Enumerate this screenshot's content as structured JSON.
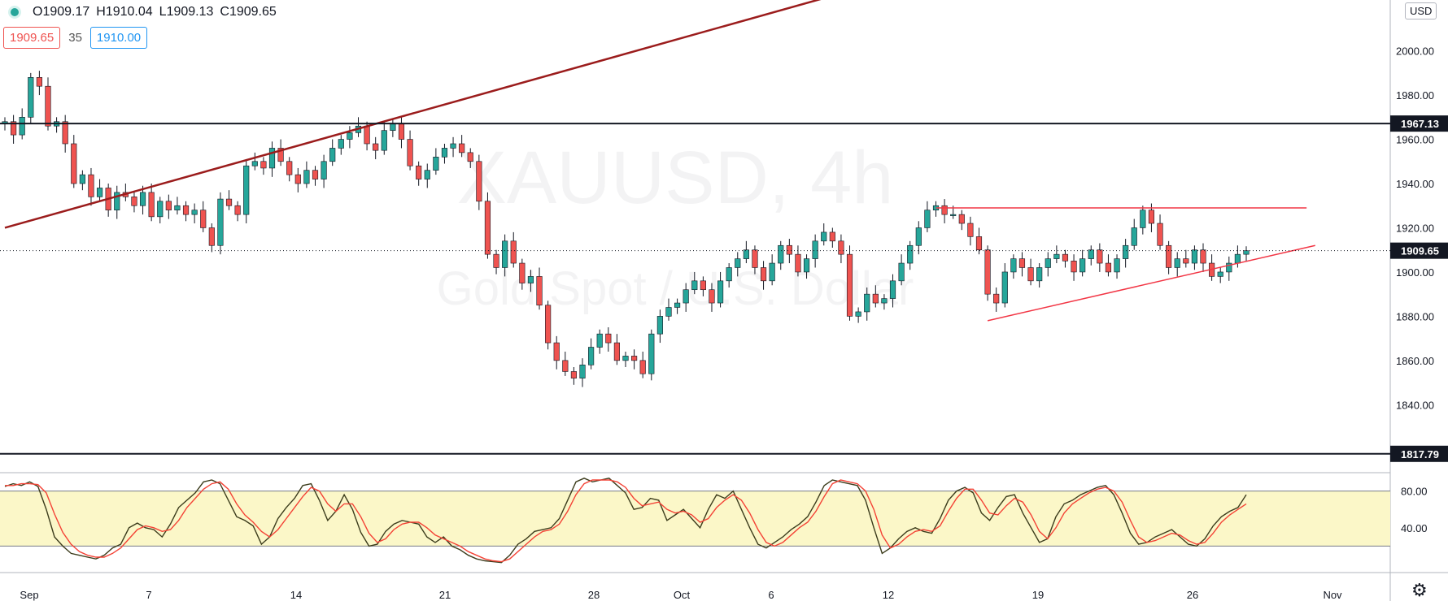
{
  "header": {
    "open": "O1909.17",
    "high": "H1910.04",
    "low": "L1909.13",
    "close": "C1909.65",
    "sell_price": "1909.65",
    "spread": "35",
    "buy_price": "1910.00",
    "currency": "USD",
    "status_color": "#26a69a"
  },
  "watermark": {
    "symbol_line": "XAUUSD, 4h",
    "name_line": "Gold Spot / U.S. Dollar"
  },
  "colors": {
    "up": "#26a69a",
    "down": "#ef5350",
    "trendline": "#9b1c1c",
    "triangle": "#f23645",
    "stoch_k": "#3c3c1c",
    "stoch_d": "#f44336",
    "stoch_band": "#fbf7c8"
  },
  "icons": {
    "settings": "gear-icon"
  },
  "chart_data": [
    {
      "type": "candlestick",
      "timeframe": "4h",
      "x_tick_labels": [
        "Sep",
        "7",
        "14",
        "21",
        "28",
        "Oct",
        "6",
        "12",
        "19",
        "26",
        "Nov"
      ],
      "y_tick_labels": [
        "2000.00",
        "1980.00",
        "1960.00",
        "1940.00",
        "1920.00",
        "1900.00",
        "1880.00",
        "1860.00",
        "1840.00"
      ],
      "ylim": [
        1810,
        2023
      ],
      "horizontal_levels": [
        {
          "label": "1967.13",
          "value": 1967.13
        },
        {
          "label": "1817.79",
          "value": 1817.79
        }
      ],
      "last_price": {
        "label": "1909.65",
        "value": 1909.65
      },
      "close_series": [
        1968,
        1962,
        1970,
        1988,
        1984,
        1966,
        1968,
        1958,
        1940,
        1944,
        1934,
        1938,
        1928,
        1936,
        1934,
        1930,
        1936,
        1925,
        1932,
        1928,
        1930,
        1926,
        1928,
        1920,
        1912,
        1933,
        1930,
        1926,
        1948,
        1950,
        1947,
        1956,
        1950,
        1944,
        1940,
        1946,
        1942,
        1950,
        1956,
        1960,
        1963,
        1966,
        1958,
        1955,
        1964,
        1967,
        1960,
        1948,
        1942,
        1946,
        1952,
        1956,
        1958,
        1954,
        1950,
        1932,
        1908,
        1902,
        1914,
        1904,
        1895,
        1898,
        1885,
        1868,
        1860,
        1855,
        1852,
        1858,
        1866,
        1872,
        1868,
        1860,
        1862,
        1860,
        1854,
        1872,
        1880,
        1884,
        1886,
        1892,
        1896,
        1892,
        1886,
        1896,
        1902,
        1906,
        1910,
        1902,
        1896,
        1904,
        1912,
        1908,
        1900,
        1906,
        1914,
        1918,
        1914,
        1908,
        1880,
        1882,
        1890,
        1886,
        1888,
        1896,
        1904,
        1912,
        1920,
        1928,
        1930,
        1926,
        1926,
        1922,
        1916,
        1910,
        1890,
        1886,
        1900,
        1906,
        1902,
        1896,
        1902,
        1906,
        1908,
        1905,
        1900,
        1906,
        1910,
        1904,
        1900,
        1906,
        1912,
        1920,
        1928,
        1922,
        1912,
        1902,
        1906,
        1904,
        1910,
        1904,
        1898,
        1900,
        1904,
        1908,
        1909.65
      ],
      "annotations": [
        {
          "type": "trendline",
          "from": [
            0,
            1920
          ],
          "to": [
            97,
            2026
          ]
        },
        {
          "type": "triangle-top",
          "from": [
            108,
            1929
          ],
          "to": [
            151,
            1929
          ]
        },
        {
          "type": "triangle-bottom",
          "from": [
            114,
            1878
          ],
          "to": [
            152,
            1912
          ]
        }
      ]
    },
    {
      "type": "line",
      "title": "",
      "y_tick_labels": [
        "80.00",
        "40.00"
      ],
      "ylim": [
        0,
        100
      ],
      "overbought": 80,
      "oversold": 20,
      "series": [
        {
          "key": "k",
          "values": [
            85,
            88,
            86,
            90,
            85,
            60,
            30,
            20,
            12,
            10,
            8,
            6,
            10,
            18,
            22,
            40,
            45,
            40,
            38,
            30,
            44,
            62,
            70,
            78,
            90,
            92,
            88,
            70,
            52,
            48,
            42,
            22,
            30,
            50,
            62,
            72,
            86,
            88,
            70,
            48,
            58,
            76,
            60,
            35,
            20,
            22,
            36,
            44,
            48,
            46,
            44,
            30,
            24,
            30,
            20,
            16,
            10,
            6,
            4,
            3,
            2,
            10,
            22,
            28,
            36,
            38,
            40,
            50,
            70,
            90,
            94,
            90,
            92,
            94,
            86,
            78,
            60,
            62,
            72,
            70,
            48,
            54,
            60,
            50,
            40,
            60,
            76,
            72,
            80,
            60,
            40,
            22,
            18,
            24,
            30,
            38,
            44,
            52,
            68,
            86,
            92,
            90,
            88,
            86,
            70,
            40,
            12,
            18,
            28,
            36,
            40,
            36,
            34,
            50,
            70,
            80,
            84,
            78,
            56,
            48,
            62,
            74,
            76,
            56,
            40,
            24,
            28,
            52,
            66,
            70,
            76,
            80,
            84,
            86,
            76,
            56,
            34,
            22,
            24,
            30,
            34,
            38,
            30,
            22,
            20,
            28,
            42,
            52,
            58,
            62,
            76
          ]
        },
        {
          "key": "d",
          "values": [
            86,
            86,
            88,
            88,
            87,
            78,
            55,
            35,
            22,
            14,
            10,
            8,
            8,
            12,
            18,
            28,
            38,
            42,
            40,
            36,
            38,
            48,
            62,
            72,
            82,
            88,
            90,
            82,
            66,
            54,
            46,
            36,
            30,
            38,
            50,
            62,
            74,
            84,
            80,
            66,
            58,
            66,
            66,
            52,
            34,
            24,
            28,
            38,
            44,
            46,
            46,
            40,
            32,
            28,
            24,
            20,
            14,
            10,
            6,
            4,
            3,
            6,
            14,
            22,
            30,
            36,
            38,
            44,
            58,
            76,
            88,
            92,
            92,
            92,
            90,
            84,
            72,
            64,
            66,
            68,
            60,
            56,
            58,
            54,
            46,
            50,
            62,
            70,
            76,
            70,
            56,
            38,
            24,
            20,
            24,
            32,
            40,
            46,
            58,
            74,
            88,
            92,
            90,
            88,
            80,
            60,
            32,
            18,
            22,
            30,
            36,
            38,
            36,
            42,
            58,
            72,
            82,
            82,
            70,
            56,
            54,
            64,
            72,
            68,
            54,
            36,
            28,
            40,
            56,
            66,
            72,
            78,
            82,
            84,
            80,
            68,
            48,
            30,
            24,
            26,
            30,
            34,
            32,
            26,
            22,
            24,
            34,
            46,
            54,
            60,
            66
          ]
        }
      ]
    }
  ]
}
